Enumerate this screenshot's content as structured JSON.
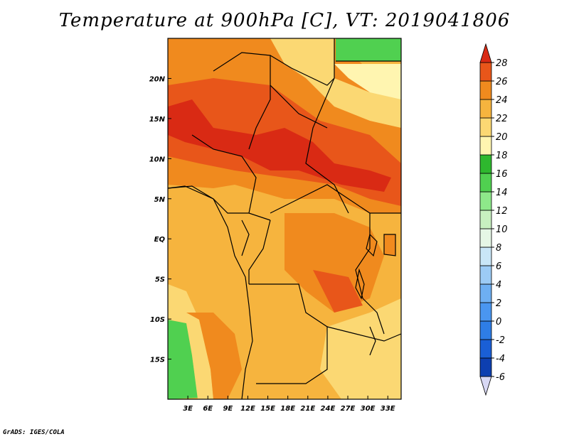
{
  "chart_data": {
    "type": "heatmap",
    "title": "Temperature at 900hPa [C], VT: 2019041806",
    "variable": "Temperature",
    "units": "C",
    "pressure_level": "900hPa",
    "valid_time": "2019041806",
    "x_axis": {
      "ticks": [
        "3E",
        "6E",
        "9E",
        "12E",
        "15E",
        "18E",
        "21E",
        "24E",
        "27E",
        "30E",
        "33E"
      ],
      "values": [
        3,
        6,
        9,
        12,
        15,
        18,
        21,
        24,
        27,
        30,
        33
      ],
      "range": [
        0,
        35
      ]
    },
    "y_axis": {
      "ticks": [
        "20N",
        "15N",
        "10N",
        "5N",
        "EQ",
        "5S",
        "10S",
        "15S"
      ],
      "values": [
        20,
        15,
        10,
        5,
        0,
        -5,
        -10,
        -15
      ],
      "range": [
        -20,
        25
      ]
    },
    "colorbar": {
      "levels": [
        -6,
        -4,
        -2,
        0,
        2,
        4,
        6,
        8,
        10,
        12,
        14,
        16,
        18,
        20,
        22,
        24,
        26,
        28
      ],
      "labels": [
        "-6",
        "-4",
        "-2",
        "0",
        "2",
        "4",
        "6",
        "8",
        "10",
        "12",
        "14",
        "16",
        "18",
        "20",
        "22",
        "24",
        "26",
        "28"
      ],
      "colors": [
        "#0a0a6e",
        "#0d3fb0",
        "#1a5fd6",
        "#2e7de6",
        "#4a96f0",
        "#6eaff2",
        "#9ccbf5",
        "#c9e6f7",
        "#e6f7e6",
        "#c8f0c0",
        "#8ee88a",
        "#50d050",
        "#2eb82e",
        "#fff5b0",
        "#fbd873",
        "#f6b43e",
        "#f08a1e",
        "#e8561a",
        "#d92a14"
      ]
    },
    "regions": [
      {
        "label": "26-28",
        "color": "#e8561a"
      },
      {
        "label": "28+",
        "color": "#d92a14"
      },
      {
        "label": "24-26",
        "color": "#f08a1e"
      },
      {
        "label": "22-24",
        "color": "#f6b43e"
      },
      {
        "label": "20-22",
        "color": "#fbd873"
      },
      {
        "label": "18-20",
        "color": "#fff5b0"
      },
      {
        "label": "12-16",
        "color": "#50d050"
      }
    ]
  },
  "credit": "GrADS: IGES/COLA"
}
